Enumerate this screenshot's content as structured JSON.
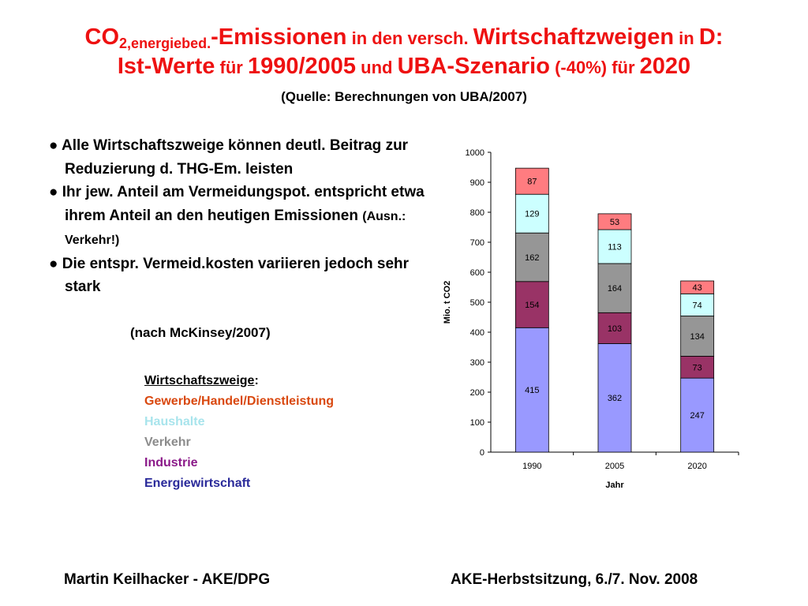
{
  "title": {
    "line1_co": "CO",
    "line1_sub": "2,energiebed.",
    "line1_a": "-Emissionen",
    "line1_b": " in den versch. ",
    "line1_c": "Wirtschaftzweigen",
    "line1_d": " in ",
    "line1_e": "D:",
    "line2_a": "Ist-Werte",
    "line2_b": " für ",
    "line2_c": "1990/2005",
    "line2_d": " und ",
    "line2_e": "UBA-Szenario",
    "line2_f": " (-40%) für ",
    "line2_g": "2020"
  },
  "source": "(Quelle: Berechnungen von UBA/2007)",
  "bullets": [
    {
      "text": "● Alle Wirtschaftszweige können deutl. Beitrag zur Reduzierung d. THG-Em. leisten",
      "note": ""
    },
    {
      "text": "● Ihr jew. Anteil am Vermeidungspot. entspricht etwa ihrem Anteil an den heutigen Emissionen ",
      "note": "(Ausn.: Verkehr!)"
    },
    {
      "text": "● Die entspr. Vermeid.kosten variieren jedoch sehr stark",
      "note": ""
    }
  ],
  "reference": "(nach McKinsey/2007)",
  "legend": {
    "header": "Wirtschaftszweige",
    "colon": ":",
    "items": [
      {
        "label": "Gewerbe/Handel/Dienstleistung",
        "color": "#d9480f"
      },
      {
        "label": "Haushalte",
        "color": "#a8e4ec"
      },
      {
        "label": "Verkehr",
        "color": "#8c8c8c"
      },
      {
        "label": "Industrie",
        "color": "#8b1a89"
      },
      {
        "label": "Energiewirtschaft",
        "color": "#2a2a9a"
      }
    ]
  },
  "chart_data": {
    "type": "bar",
    "stacked": true,
    "categories": [
      "1990",
      "2005",
      "2020"
    ],
    "series": [
      {
        "name": "Energiewirtschaft",
        "values": [
          415,
          362,
          247
        ],
        "color": "#9999ff"
      },
      {
        "name": "Industrie",
        "values": [
          154,
          103,
          73
        ],
        "color": "#993366"
      },
      {
        "name": "Verkehr",
        "values": [
          162,
          164,
          134
        ],
        "color": "#969696"
      },
      {
        "name": "Haushalte",
        "values": [
          129,
          113,
          74
        ],
        "color": "#ccffff"
      },
      {
        "name": "Gewerbe/Handel/Dienstleistung",
        "values": [
          87,
          53,
          43
        ],
        "color": "#ff7c80"
      }
    ],
    "yticks": [
      "0",
      "100",
      "200",
      "300",
      "400",
      "500",
      "600",
      "700",
      "800",
      "900",
      "1000"
    ],
    "ylim": [
      0,
      1000
    ],
    "xlabel": "Jahr",
    "ylabel": "Mio.  t  CO2",
    "grid": false,
    "legend": "none"
  },
  "footer": {
    "left": "Martin Keilhacker - AKE/DPG",
    "right": "AKE-Herbstsitzung, 6./7. Nov. 2008"
  }
}
